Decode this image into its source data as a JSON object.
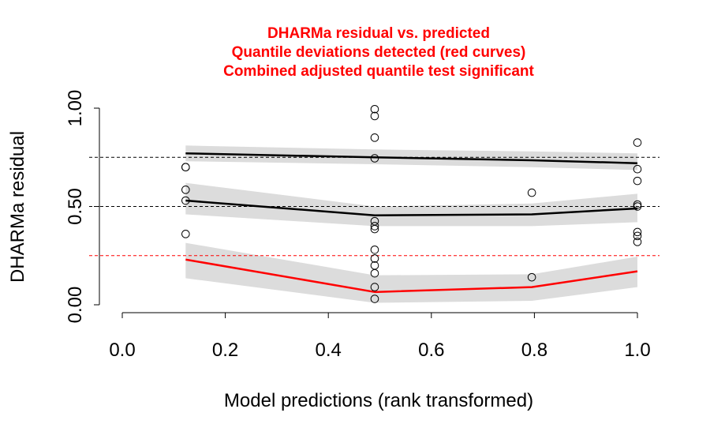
{
  "chart_data": {
    "type": "scatter",
    "title_lines": [
      "DHARMa residual vs. predicted",
      "Quantile deviations detected (red curves)",
      "Combined adjusted quantile test significant"
    ],
    "xlabel": "Model predictions (rank transformed)",
    "ylabel": "DHARMa residual",
    "xlim": [
      0.0,
      1.0
    ],
    "ylim": [
      0.0,
      1.0
    ],
    "x_ticks": [
      "0.0",
      "0.2",
      "0.4",
      "0.6",
      "0.8",
      "1.0"
    ],
    "y_ticks": [
      "0.00",
      "0.50",
      "1.00"
    ],
    "reference_lines": [
      {
        "y": 0.25,
        "color": "#ff0000",
        "style": "dashed"
      },
      {
        "y": 0.5,
        "color": "#000000",
        "style": "dashed"
      },
      {
        "y": 0.75,
        "color": "#000000",
        "style": "dashed"
      }
    ],
    "points": [
      {
        "x": 0.123,
        "y": 0.7
      },
      {
        "x": 0.123,
        "y": 0.7
      },
      {
        "x": 0.123,
        "y": 0.585
      },
      {
        "x": 0.123,
        "y": 0.53
      },
      {
        "x": 0.123,
        "y": 0.36
      },
      {
        "x": 0.49,
        "y": 0.995
      },
      {
        "x": 0.49,
        "y": 0.96
      },
      {
        "x": 0.49,
        "y": 0.85
      },
      {
        "x": 0.49,
        "y": 0.745
      },
      {
        "x": 0.49,
        "y": 0.425
      },
      {
        "x": 0.49,
        "y": 0.4
      },
      {
        "x": 0.49,
        "y": 0.385
      },
      {
        "x": 0.49,
        "y": 0.28
      },
      {
        "x": 0.49,
        "y": 0.235
      },
      {
        "x": 0.49,
        "y": 0.2
      },
      {
        "x": 0.49,
        "y": 0.16
      },
      {
        "x": 0.49,
        "y": 0.09
      },
      {
        "x": 0.49,
        "y": 0.03
      },
      {
        "x": 0.795,
        "y": 0.57
      },
      {
        "x": 0.795,
        "y": 0.14
      },
      {
        "x": 1.0,
        "y": 0.825
      },
      {
        "x": 1.0,
        "y": 0.69
      },
      {
        "x": 1.0,
        "y": 0.63
      },
      {
        "x": 1.0,
        "y": 0.51
      },
      {
        "x": 1.0,
        "y": 0.5
      },
      {
        "x": 1.0,
        "y": 0.37
      },
      {
        "x": 1.0,
        "y": 0.35
      },
      {
        "x": 1.0,
        "y": 0.32
      }
    ],
    "quantile_curves": [
      {
        "quantile": 0.75,
        "color": "#000000",
        "x": [
          0.123,
          0.49,
          0.795,
          1.0
        ],
        "y": [
          0.77,
          0.75,
          0.735,
          0.72
        ],
        "band_low": [
          0.73,
          0.715,
          0.7,
          0.685
        ],
        "band_high": [
          0.81,
          0.79,
          0.78,
          0.77
        ]
      },
      {
        "quantile": 0.5,
        "color": "#000000",
        "x": [
          0.123,
          0.49,
          0.795,
          1.0
        ],
        "y": [
          0.53,
          0.455,
          0.46,
          0.49
        ],
        "band_low": [
          0.46,
          0.4,
          0.4,
          0.42
        ],
        "band_high": [
          0.62,
          0.5,
          0.515,
          0.565
        ]
      },
      {
        "quantile": 0.25,
        "color": "#ff0000",
        "x": [
          0.123,
          0.49,
          0.795,
          1.0
        ],
        "y": [
          0.23,
          0.065,
          0.09,
          0.17
        ],
        "band_low": [
          0.135,
          0.01,
          0.02,
          0.09
        ],
        "band_high": [
          0.315,
          0.15,
          0.155,
          0.245
        ]
      }
    ],
    "grid": false,
    "legend": "none"
  }
}
